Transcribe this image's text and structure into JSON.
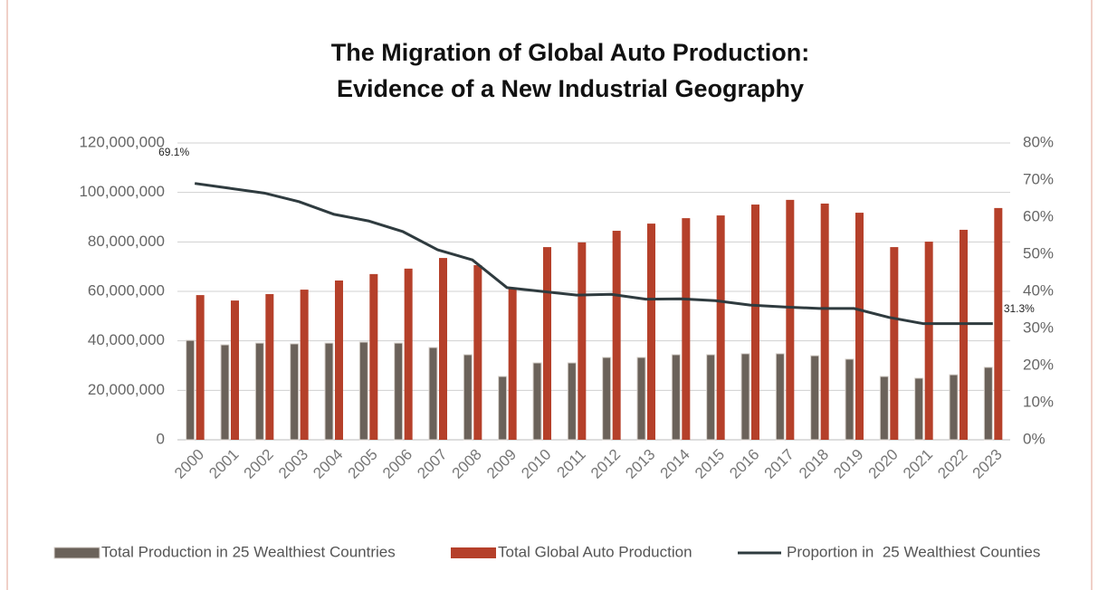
{
  "chart_data": {
    "type": "bar",
    "title": [
      "The Migration of Global Auto Production:",
      "Evidence of a New Industrial Geography"
    ],
    "categories": [
      "2000",
      "2001",
      "2002",
      "2003",
      "2004",
      "2005",
      "2006",
      "2007",
      "2008",
      "2009",
      "2010",
      "2011",
      "2012",
      "2013",
      "2014",
      "2015",
      "2016",
      "2017",
      "2018",
      "2019",
      "2020",
      "2021",
      "2022",
      "2023"
    ],
    "series": [
      {
        "name": "Total Production in 25 Wealthiest Countries",
        "type": "bar",
        "color": "#6b625a",
        "values": [
          40200000,
          38400000,
          39100000,
          38800000,
          39100000,
          39500000,
          39100000,
          37300000,
          34400000,
          25600000,
          31100000,
          31100000,
          33300000,
          33300000,
          34400000,
          34400000,
          34800000,
          34800000,
          34000000,
          32600000,
          25600000,
          24900000,
          26300000,
          29300000
        ]
      },
      {
        "name": "Total Global Auto Production",
        "type": "bar",
        "color": "#b5402a",
        "values": [
          58500000,
          56300000,
          58900000,
          60700000,
          64400000,
          67000000,
          69200000,
          73500000,
          70600000,
          61500000,
          77900000,
          79800000,
          84500000,
          87400000,
          89600000,
          90700000,
          95100000,
          97000000,
          95500000,
          91800000,
          77900000,
          80100000,
          84900000,
          93700000
        ]
      },
      {
        "name": "Proportion in  25 Wealthiest Counties",
        "type": "line",
        "axis": "y2",
        "color": "#2f3b3f",
        "values": [
          69.1,
          67.8,
          66.5,
          64.2,
          60.8,
          59.0,
          56.1,
          51.2,
          48.5,
          41.0,
          40.0,
          39.0,
          39.2,
          37.9,
          38.0,
          37.5,
          36.3,
          35.8,
          35.4,
          35.4,
          33.0,
          31.3,
          31.3,
          31.3
        ],
        "value_labels": [
          "69.1%",
          null,
          null,
          null,
          null,
          null,
          null,
          null,
          null,
          null,
          null,
          null,
          null,
          null,
          null,
          null,
          null,
          null,
          null,
          null,
          null,
          null,
          null,
          "31.3%"
        ]
      }
    ],
    "ylim": [
      0,
      120000000
    ],
    "yticks": [
      0,
      {
        "value": 20000000,
        "label": "20,000,000"
      },
      {
        "value": 40000000,
        "label": "40,000,000"
      },
      {
        "value": 60000000,
        "label": "60,000,000"
      },
      {
        "value": 80000000,
        "label": "80,000,000"
      },
      {
        "value": 100000000,
        "label": "100,000,000"
      },
      {
        "value": 120000000,
        "label": "120,000,000"
      }
    ],
    "y2lim": [
      0,
      80
    ],
    "y2ticks": [
      {
        "value": 0,
        "label": "0%"
      },
      {
        "value": 10,
        "label": "10%"
      },
      {
        "value": 20,
        "label": "20%"
      },
      {
        "value": 30,
        "label": "30%"
      },
      {
        "value": 40,
        "label": "40%"
      },
      {
        "value": 50,
        "label": "50%"
      },
      {
        "value": 60,
        "label": "60%"
      },
      {
        "value": 70,
        "label": "70%"
      },
      {
        "value": 80,
        "label": "80%"
      }
    ],
    "grid": true,
    "legend": "bottom"
  }
}
